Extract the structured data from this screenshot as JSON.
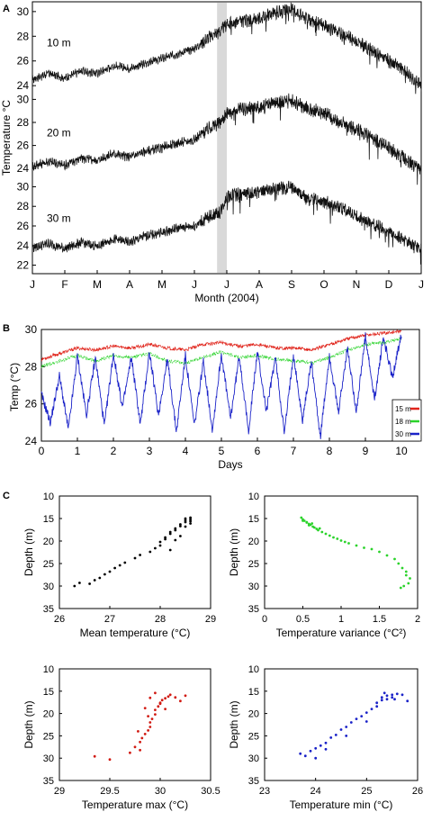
{
  "chart_data": [
    {
      "panel": "A",
      "type": "line",
      "xlabel": "Month (2004)",
      "ylabel": "Temperature °C",
      "x_ticklabels": [
        "J",
        "F",
        "M",
        "A",
        "M",
        "J",
        "J",
        "A",
        "S",
        "O",
        "N",
        "D",
        "J"
      ],
      "highlight_band": {
        "start_month": 5.7,
        "end_month": 6.0
      },
      "subplots": [
        {
          "label": "10 m",
          "ylim": [
            23.5,
            30.5
          ],
          "yticks": [
            24,
            26,
            28,
            30
          ],
          "series": [
            {
              "x_month": [
                0,
                0.5,
                1,
                1.5,
                2,
                2.5,
                3,
                3.5,
                4,
                4.5,
                5,
                5.5,
                5.8,
                6,
                6.5,
                7,
                7.5,
                8,
                8.5,
                9,
                9.5,
                10,
                10.5,
                11,
                11.5,
                12
              ],
              "y": [
                24.5,
                25.0,
                24.6,
                25.2,
                25.0,
                25.6,
                25.4,
                25.8,
                26.2,
                26.6,
                27.0,
                28.0,
                28.4,
                29.0,
                29.2,
                29.5,
                29.9,
                30.2,
                29.4,
                28.9,
                28.2,
                27.6,
                26.8,
                26.0,
                25.2,
                24.0
              ]
            }
          ]
        },
        {
          "label": "20 m",
          "ylim": [
            23.0,
            30.5
          ],
          "yticks": [
            24,
            26,
            28,
            30
          ],
          "series": [
            {
              "x_month": [
                0,
                0.5,
                1,
                1.5,
                2,
                2.5,
                3,
                3.5,
                4,
                4.5,
                5,
                5.5,
                5.8,
                6,
                6.5,
                7,
                7.5,
                8,
                8.5,
                9,
                9.5,
                10,
                10.5,
                11,
                11.5,
                12
              ],
              "y": [
                24.2,
                24.6,
                24.3,
                24.9,
                24.7,
                25.3,
                25.0,
                25.5,
                25.8,
                26.2,
                26.5,
                27.6,
                28.0,
                28.8,
                29.2,
                29.3,
                29.7,
                29.9,
                29.2,
                28.8,
                28.0,
                27.4,
                26.6,
                25.8,
                24.9,
                23.8
              ]
            }
          ]
        },
        {
          "label": "30 m",
          "ylim": [
            21.5,
            30.5
          ],
          "yticks": [
            22,
            24,
            26,
            28,
            30
          ],
          "series": [
            {
              "x_month": [
                0,
                0.5,
                1,
                1.5,
                2,
                2.5,
                3,
                3.5,
                4,
                4.5,
                5,
                5.5,
                5.8,
                6,
                6.5,
                7,
                7.5,
                8,
                8.5,
                9,
                9.5,
                10,
                10.5,
                11,
                11.5,
                12
              ],
              "y": [
                23.8,
                24.2,
                23.7,
                24.3,
                23.9,
                24.7,
                24.3,
                25.0,
                25.3,
                25.8,
                26.0,
                27.0,
                27.4,
                29.0,
                29.3,
                29.4,
                29.8,
                29.9,
                28.8,
                28.5,
                27.8,
                27.0,
                26.2,
                25.4,
                24.5,
                23.5
              ]
            }
          ]
        }
      ]
    },
    {
      "panel": "B",
      "type": "line",
      "xlabel": "Days",
      "ylabel": "Temp (°C)",
      "xlim": [
        0,
        10.5
      ],
      "ylim": [
        24,
        30
      ],
      "xticks": [
        0,
        1,
        2,
        3,
        4,
        5,
        6,
        7,
        8,
        9,
        10
      ],
      "yticks": [
        24,
        26,
        28,
        30
      ],
      "legend_position": "bottom-right",
      "series": [
        {
          "name": "15 m",
          "color": "#e0241b",
          "x": [
            0,
            0.5,
            1,
            1.5,
            2,
            2.5,
            3,
            3.5,
            4,
            4.5,
            5,
            5.5,
            6,
            6.5,
            7,
            7.5,
            8,
            8.5,
            9,
            9.5,
            10
          ],
          "y": [
            28.4,
            28.7,
            29.0,
            28.9,
            29.1,
            29.0,
            29.2,
            29.0,
            28.9,
            29.2,
            29.3,
            29.1,
            29.2,
            29.0,
            29.0,
            28.9,
            29.2,
            29.5,
            29.7,
            29.8,
            29.9
          ]
        },
        {
          "name": "18 m",
          "color": "#2bd32b",
          "x": [
            0,
            0.5,
            1,
            1.5,
            2,
            2.5,
            3,
            3.5,
            4,
            4.5,
            5,
            5.5,
            6,
            6.5,
            7,
            7.5,
            8,
            8.5,
            9,
            9.5,
            10
          ],
          "y": [
            28.0,
            28.3,
            28.6,
            28.3,
            28.6,
            28.5,
            28.7,
            28.3,
            28.2,
            28.5,
            28.8,
            28.5,
            28.6,
            28.4,
            28.3,
            28.2,
            28.5,
            28.9,
            29.2,
            29.3,
            29.5
          ]
        },
        {
          "name": "30 m",
          "color": "#1a22c8",
          "x": [
            0,
            0.25,
            0.5,
            0.75,
            1,
            1.25,
            1.5,
            1.75,
            2,
            2.25,
            2.5,
            2.75,
            3,
            3.25,
            3.5,
            3.75,
            4,
            4.25,
            4.5,
            4.75,
            5,
            5.25,
            5.5,
            5.75,
            6,
            6.25,
            6.5,
            6.75,
            7,
            7.25,
            7.5,
            7.75,
            8,
            8.25,
            8.5,
            8.75,
            9,
            9.25,
            9.5,
            9.75,
            10
          ],
          "y": [
            26.5,
            25.0,
            27.5,
            24.6,
            28.6,
            25.4,
            28.5,
            24.8,
            28.7,
            25.8,
            28.5,
            24.9,
            28.8,
            25.4,
            28.4,
            24.5,
            28.6,
            24.8,
            28.3,
            24.6,
            28.7,
            25.2,
            28.6,
            24.5,
            28.8,
            25.6,
            28.5,
            24.4,
            28.7,
            25.1,
            28.3,
            24.2,
            28.6,
            25.5,
            29.0,
            25.6,
            29.6,
            26.2,
            29.6,
            27.4,
            29.8
          ]
        }
      ]
    },
    {
      "panel": "C",
      "type": "scatter",
      "xlabel": "Mean temperature (°C)",
      "ylabel": "Depth (m)",
      "xlim": [
        26,
        29
      ],
      "ylim": [
        10,
        35
      ],
      "y_inverted": true,
      "xticks": [
        26,
        27,
        28,
        29
      ],
      "yticks": [
        10,
        15,
        20,
        25,
        30,
        35
      ],
      "color": "#000000",
      "x": [
        26.3,
        26.4,
        26.6,
        26.7,
        26.8,
        26.9,
        27.0,
        27.1,
        27.2,
        27.3,
        27.5,
        27.6,
        27.8,
        27.9,
        28.0,
        28.0,
        28.1,
        28.1,
        28.2,
        28.2,
        28.3,
        28.3,
        28.4,
        28.4,
        28.5,
        28.5,
        28.5,
        28.6,
        28.6,
        28.6,
        28.2,
        28.4,
        28.5,
        28.3,
        28.6
      ],
      "y": [
        30,
        29.3,
        29.5,
        28.7,
        28.2,
        27.4,
        26.8,
        26,
        25.4,
        24.8,
        23.8,
        23.1,
        22.4,
        21.6,
        21,
        20.2,
        19.6,
        19.2,
        18.4,
        18,
        17.6,
        17.2,
        16.7,
        16.3,
        15.8,
        15.4,
        15,
        15.6,
        16.1,
        15.2,
        22,
        18.9,
        16.8,
        19.8,
        14.8
      ]
    },
    {
      "panel": "C",
      "type": "scatter",
      "xlabel": "Temperature variance (°C²)",
      "ylabel": "Depth (m)",
      "xlim": [
        0,
        2
      ],
      "ylim": [
        10,
        35
      ],
      "y_inverted": true,
      "xticks": [
        0,
        0.5,
        1,
        1.5,
        2
      ],
      "yticks": [
        10,
        15,
        20,
        25,
        30,
        35
      ],
      "color": "#2bd32b",
      "x": [
        0.48,
        0.5,
        0.52,
        0.55,
        0.58,
        0.6,
        0.63,
        0.65,
        0.68,
        0.7,
        0.75,
        0.8,
        0.85,
        0.9,
        0.95,
        1.0,
        1.05,
        1.1,
        1.2,
        1.3,
        1.4,
        1.5,
        1.6,
        1.7,
        1.75,
        1.8,
        1.85,
        1.85,
        1.9,
        1.88,
        1.82,
        1.78,
        0.55,
        0.62,
        0.72,
        0.5,
        0.58
      ],
      "y": [
        14.8,
        15.2,
        15.5,
        15.8,
        16.2,
        16.4,
        16.8,
        17.0,
        17.3,
        17.6,
        18,
        18.4,
        18.8,
        19.2,
        19.5,
        19.9,
        20.2,
        20.5,
        21,
        21.5,
        21.8,
        22.4,
        23.2,
        24,
        25,
        26,
        26.8,
        27.6,
        28.3,
        29.4,
        30,
        30.4,
        15.9,
        16.1,
        17.2,
        15.5,
        16.5
      ]
    },
    {
      "panel": "C",
      "type": "scatter",
      "xlabel": "Temperature max (°C)",
      "ylabel": "Depth (m)",
      "xlim": [
        29,
        30.5
      ],
      "ylim": [
        10,
        35
      ],
      "y_inverted": true,
      "xticks": [
        29,
        29.5,
        30,
        30.5
      ],
      "yticks": [
        10,
        15,
        20,
        25,
        30,
        35
      ],
      "color": "#d11a12",
      "x": [
        29.35,
        29.5,
        29.7,
        29.75,
        29.8,
        29.82,
        29.85,
        29.88,
        29.9,
        29.9,
        29.92,
        29.95,
        29.95,
        29.98,
        30.0,
        30.02,
        30.05,
        30.08,
        30.1,
        30.15,
        30.2,
        30.25,
        29.85,
        29.9,
        29.95,
        30.0,
        29.8,
        29.78,
        29.88,
        30.05
      ],
      "y": [
        29.6,
        30.3,
        28.8,
        27.5,
        26.4,
        25.5,
        24.6,
        23.8,
        23.0,
        22.0,
        21.2,
        20.2,
        19.2,
        18.4,
        17.6,
        17.0,
        16.6,
        16.2,
        15.8,
        16.4,
        17.2,
        16.0,
        18.8,
        16.5,
        15.4,
        17.8,
        28.2,
        24.0,
        20.6,
        19.0
      ]
    },
    {
      "panel": "C",
      "type": "scatter",
      "xlabel": "Temperature min (°C)",
      "ylabel": "Depth (m)",
      "xlim": [
        23,
        26
      ],
      "ylim": [
        10,
        35
      ],
      "y_inverted": true,
      "xticks": [
        23,
        24,
        25,
        26
      ],
      "yticks": [
        10,
        15,
        20,
        25,
        30,
        35
      ],
      "color": "#1a22c8",
      "x": [
        23.7,
        23.8,
        23.9,
        24.0,
        24.1,
        24.2,
        24.3,
        24.4,
        24.5,
        24.6,
        24.7,
        24.8,
        24.9,
        25.0,
        25.1,
        25.2,
        25.2,
        25.3,
        25.3,
        25.4,
        25.4,
        25.5,
        25.5,
        25.6,
        25.7,
        25.8,
        24.0,
        24.2,
        24.6,
        25.0,
        25.35,
        25.55
      ],
      "y": [
        29.0,
        29.5,
        28.4,
        27.8,
        27.2,
        26.6,
        25.4,
        24.8,
        23.6,
        23.0,
        22.0,
        21.2,
        20.6,
        19.8,
        19.0,
        18.4,
        17.6,
        17.0,
        16.4,
        16.0,
        16.8,
        15.8,
        16.4,
        15.6,
        15.8,
        17.2,
        30.0,
        28.0,
        25.0,
        21.8,
        15.4,
        16.8
      ]
    }
  ]
}
